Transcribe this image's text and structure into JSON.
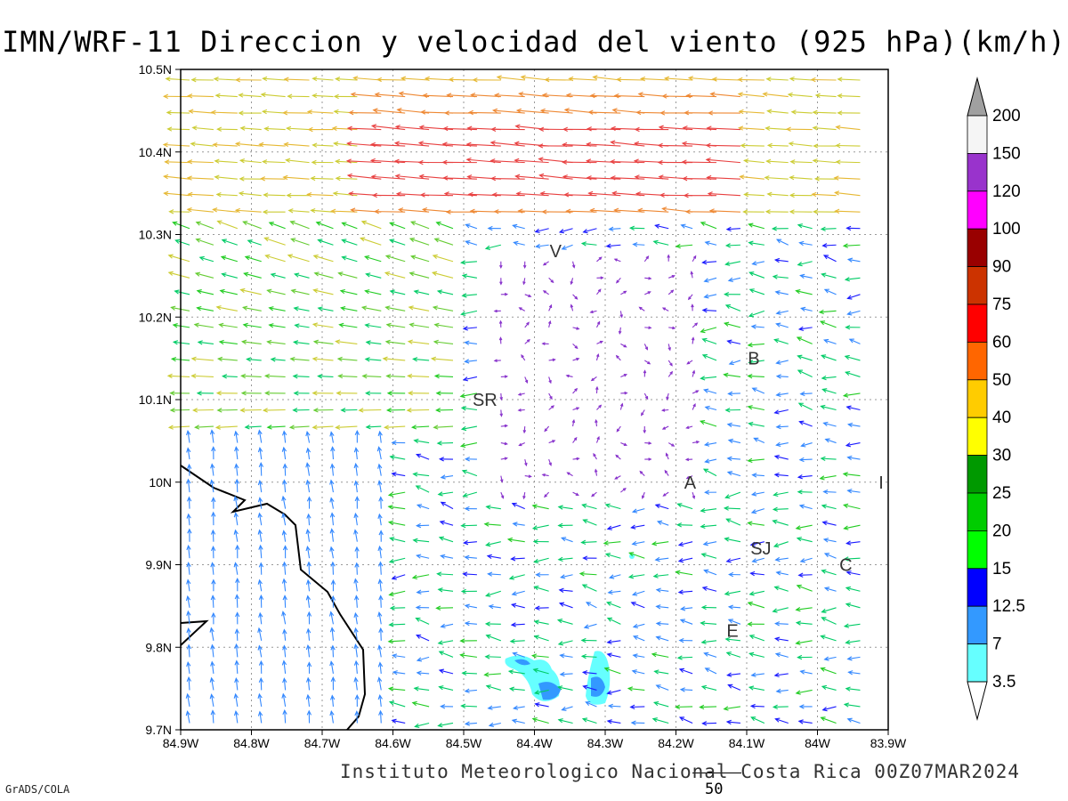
{
  "title": "IMN/WRF-11 Direccion y velocidad del viento (925 hPa)(km/h)",
  "footer": "Instituto Meteorologico Nacional Costa Rica 00Z07MAR2024",
  "credit": "GrADS/COLA",
  "reference_vector_label": "50",
  "map": {
    "lon_range": [
      -84.9,
      -83.9
    ],
    "lat_range": [
      9.7,
      10.5
    ],
    "x_tick_labels": [
      "84.9W",
      "84.8W",
      "84.7W",
      "84.6W",
      "84.5W",
      "84.4W",
      "84.3W",
      "84.2W",
      "84.1W",
      "84W",
      "83.9W"
    ],
    "y_tick_labels": [
      "9.7N",
      "9.8N",
      "9.9N",
      "10N",
      "10.1N",
      "10.2N",
      "10.3N",
      "10.4N",
      "10.5N"
    ],
    "grid": "dotted",
    "place_labels": [
      {
        "text": "V",
        "lon": -84.37,
        "lat": 10.28
      },
      {
        "text": "B",
        "lon": -84.09,
        "lat": 10.15
      },
      {
        "text": "SR",
        "lon": -84.47,
        "lat": 10.1
      },
      {
        "text": "A",
        "lon": -84.18,
        "lat": 10.0
      },
      {
        "text": "I",
        "lon": -83.91,
        "lat": 10.0
      },
      {
        "text": "SJ",
        "lon": -84.08,
        "lat": 9.92
      },
      {
        "text": "C",
        "lon": -83.96,
        "lat": 9.9
      },
      {
        "text": "E",
        "lon": -84.12,
        "lat": 9.82
      }
    ]
  },
  "colorbar": {
    "labels": [
      "200",
      "150",
      "120",
      "100",
      "90",
      "75",
      "60",
      "50",
      "40",
      "30",
      "25",
      "20",
      "15",
      "12.5",
      "7",
      "3.5"
    ],
    "colors": [
      "#a0a0a0",
      "#f5f5f5",
      "#9933cc",
      "#ff00ff",
      "#990000",
      "#cc3300",
      "#ff0000",
      "#ff6600",
      "#ffcc00",
      "#ffff00",
      "#009900",
      "#00cc00",
      "#00ff00",
      "#0000ff",
      "#3399ff",
      "#66ffff",
      "#ffffff"
    ]
  }
}
